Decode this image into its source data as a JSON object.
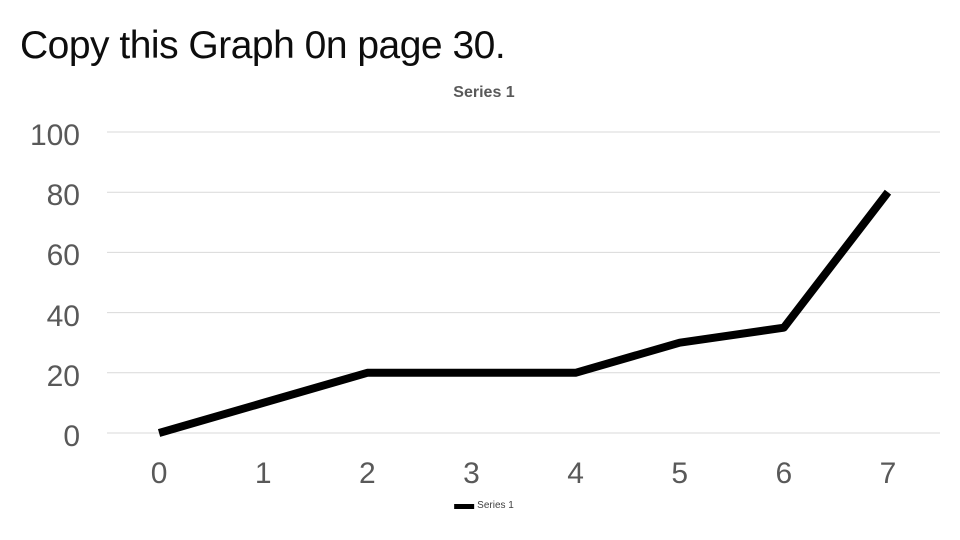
{
  "slide": {
    "title": "Copy this Graph 0n page 30."
  },
  "chart": {
    "title": "Series 1",
    "legend_label": "Series 1",
    "colors": {
      "line": "#000000",
      "grid": "#d9d9d9",
      "tick_label": "#595959",
      "chart_title": "#595959",
      "slide_title": "#0d0d0d",
      "background": "#ffffff"
    }
  },
  "chart_data": {
    "type": "line",
    "title": "Series 1",
    "x": [
      0,
      1,
      2,
      3,
      4,
      5,
      6,
      7
    ],
    "series": [
      {
        "name": "Series 1",
        "values": [
          0,
          10,
          20,
          20,
          20,
          30,
          35,
          80
        ]
      }
    ],
    "xlabel": "",
    "ylabel": "",
    "ylim": [
      0,
      100
    ],
    "yticks": [
      0,
      20,
      40,
      60,
      80,
      100
    ],
    "grid": true,
    "legend_position": "bottom",
    "line_width": 8
  }
}
